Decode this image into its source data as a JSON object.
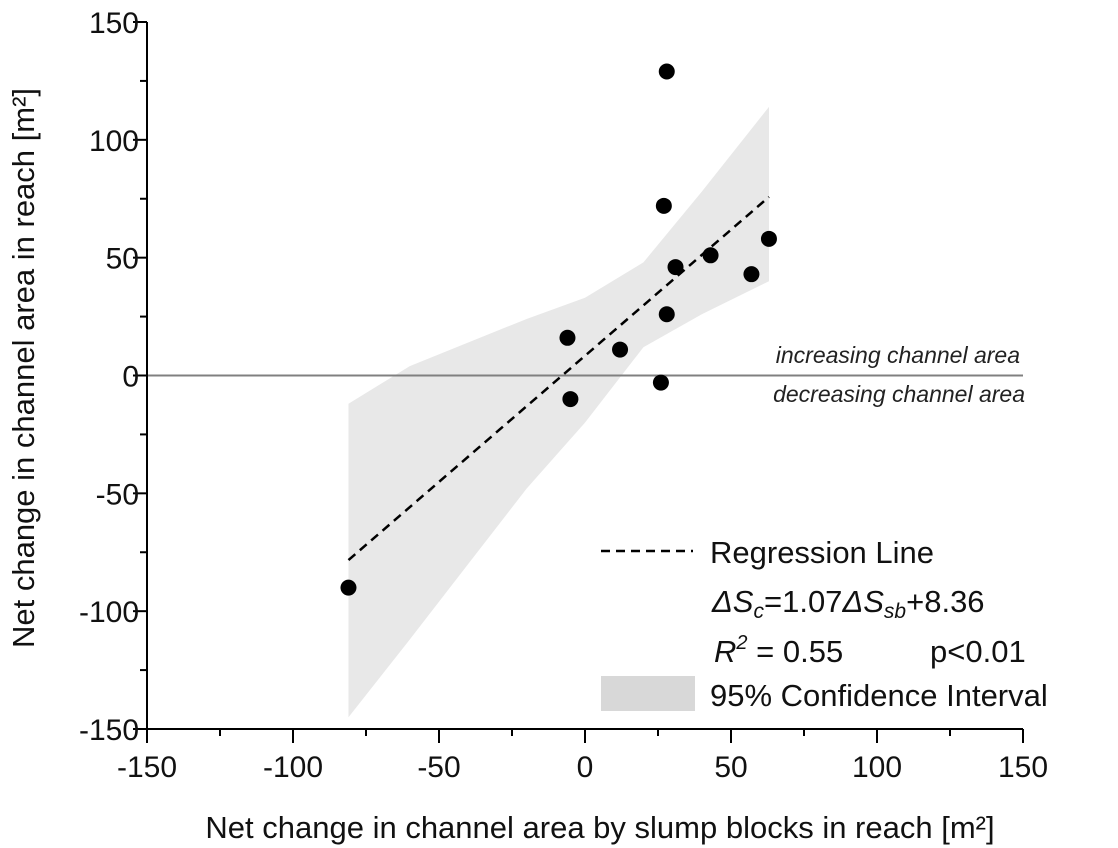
{
  "chart_data": {
    "type": "scatter",
    "xlabel": "Net change in channel area by slump blocks in reach [m²]",
    "ylabel": "Net change in channel area in reach [m²]",
    "xlim": [
      -150,
      150
    ],
    "ylim": [
      -150,
      150
    ],
    "xticks": [
      -150,
      -100,
      -50,
      0,
      50,
      100,
      150
    ],
    "yticks": [
      -150,
      -100,
      -50,
      0,
      50,
      100,
      150
    ],
    "grid": false,
    "points": [
      {
        "x": -81,
        "y": -90
      },
      {
        "x": -6,
        "y": 16
      },
      {
        "x": -5,
        "y": -10
      },
      {
        "x": 12,
        "y": 11
      },
      {
        "x": 26,
        "y": -3
      },
      {
        "x": 27,
        "y": 72
      },
      {
        "x": 28,
        "y": 26
      },
      {
        "x": 28,
        "y": 129
      },
      {
        "x": 31,
        "y": 46
      },
      {
        "x": 43,
        "y": 51
      },
      {
        "x": 57,
        "y": 43
      },
      {
        "x": 63,
        "y": 58
      }
    ],
    "regression": {
      "slope": 1.07,
      "intercept": 8.36,
      "x_range": [
        -81,
        63
      ],
      "style": "dashed"
    },
    "confidence_band": {
      "x": [
        -81,
        -60,
        -40,
        -20,
        0,
        20,
        40,
        63
      ],
      "upper": [
        -12,
        4,
        14,
        24,
        33,
        48,
        78,
        114
      ],
      "lower": [
        -145,
        -112,
        -80,
        -48,
        -20,
        12,
        26,
        40
      ]
    },
    "reference_line": {
      "y": 0,
      "label_above": "increasing channel area",
      "label_below": "decreasing channel area"
    },
    "legend": {
      "position": "bottom-right",
      "regression_label": "Regression Line",
      "equation": {
        "p1": "ΔS",
        "p1_sub": "c",
        "p2": "=1.07",
        "p3": "ΔS",
        "p3_sub": "sb",
        "p4": "+8.36"
      },
      "r2": {
        "var": "R",
        "sup": "2",
        "value": " = 0.55",
        "p": "p<0.01"
      },
      "ci_label": "95% Confidence Interval"
    },
    "colors": {
      "points": "#000000",
      "band": "#e8e8e8",
      "legend_patch": "#d8d8d8",
      "zero_line": "#808080",
      "axis": "#000000"
    }
  }
}
